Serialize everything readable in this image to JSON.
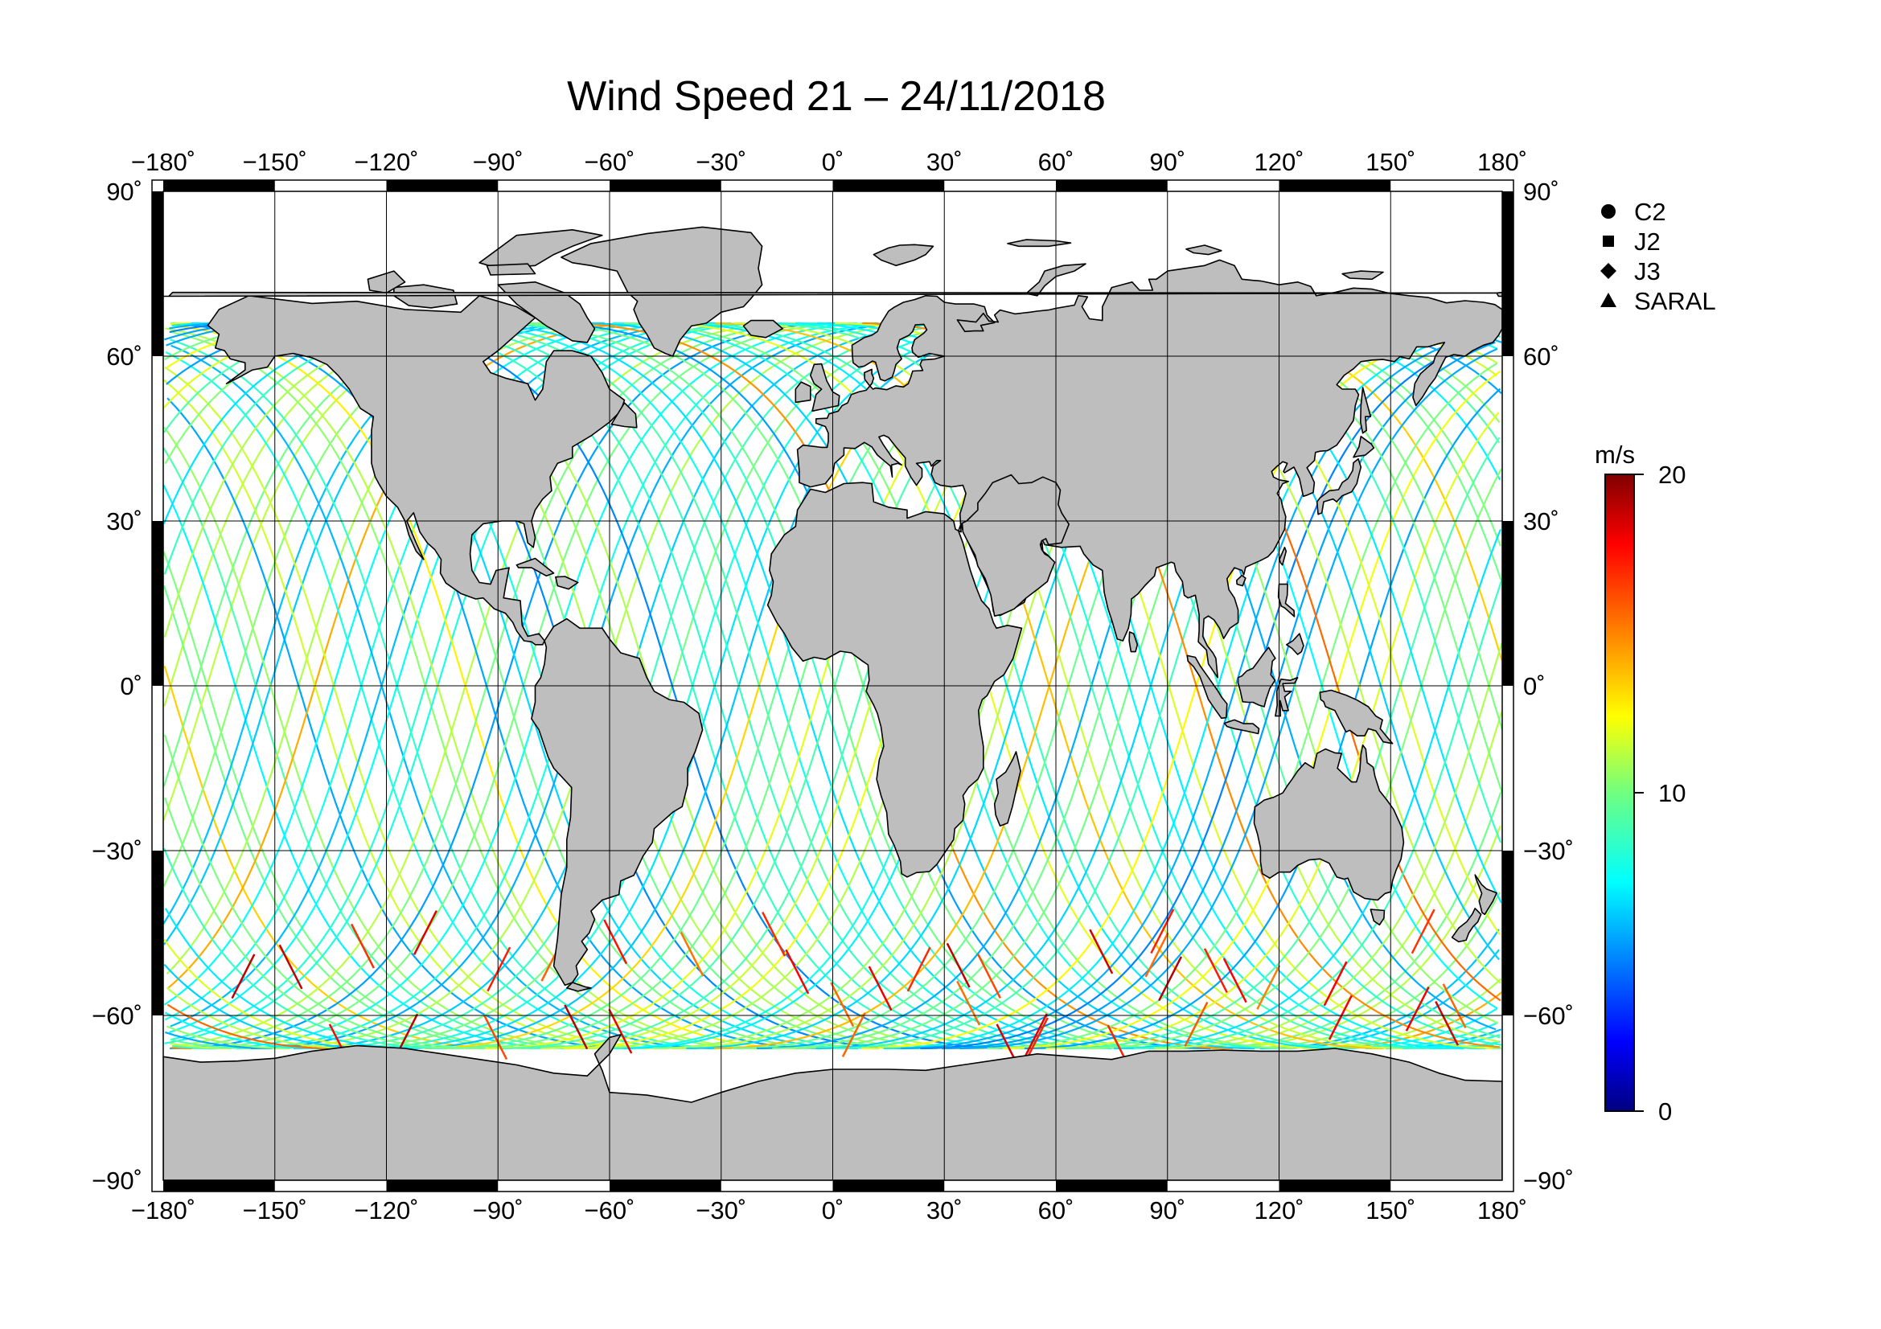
{
  "title": "Wind Speed 21 – 24/11/2018",
  "map": {
    "projection": "equirectangular",
    "lon_range": [
      -180,
      180
    ],
    "lat_range": [
      -90,
      90
    ],
    "lon_ticks": [
      -180,
      -150,
      -120,
      -90,
      -60,
      -30,
      0,
      30,
      60,
      90,
      120,
      150,
      180
    ],
    "lon_tick_labels": [
      "−180˚",
      "−150˚",
      "−120˚",
      "−90˚",
      "−60˚",
      "−30˚",
      "0˚",
      "30˚",
      "60˚",
      "90˚",
      "120˚",
      "150˚",
      "180˚"
    ],
    "lat_ticks": [
      90,
      60,
      30,
      0,
      -30,
      -60,
      -90
    ],
    "lat_tick_labels": [
      "90˚",
      "60˚",
      "30˚",
      "0˚",
      "−30˚",
      "−60˚",
      "−90˚"
    ],
    "land_color": "#bebebe",
    "ocean_color": "#ffffff",
    "grid": true
  },
  "legend": {
    "placement": "top-right",
    "items": [
      {
        "label": "C2",
        "symbol": "circle"
      },
      {
        "label": "J2",
        "symbol": "square"
      },
      {
        "label": "J3",
        "symbol": "diamond"
      },
      {
        "label": "SARAL",
        "symbol": "triangle"
      }
    ]
  },
  "colorbar": {
    "unit": "m/s",
    "min": 0,
    "max": 20,
    "tick_values": [
      0,
      10,
      20
    ],
    "tick_labels": [
      "0",
      "10",
      "20"
    ],
    "colormap": "jet"
  }
}
